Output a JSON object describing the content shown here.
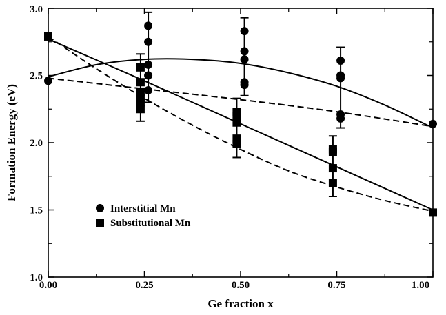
{
  "chart_data": {
    "type": "scatter",
    "title": "",
    "xlabel": "Ge fraction x",
    "ylabel": "Formation Energy (eV)",
    "xlim": [
      0.0,
      1.0
    ],
    "ylim": [
      1.0,
      3.0
    ],
    "grid": false,
    "legend_position": "bottom-left",
    "x_ticks": [
      "0.00",
      "0.25",
      "0.50",
      "0.75",
      "1.00"
    ],
    "y_ticks": [
      "1.0",
      "1.5",
      "2.0",
      "2.5",
      "3.0"
    ],
    "series": [
      {
        "name": "Interstitial Mn",
        "marker": "circle",
        "points": [
          {
            "x": 0.0,
            "y": 2.46
          },
          {
            "x": 0.26,
            "y": 2.87
          },
          {
            "x": 0.26,
            "y": 2.75
          },
          {
            "x": 0.26,
            "y": 2.58
          },
          {
            "x": 0.26,
            "y": 2.5
          },
          {
            "x": 0.26,
            "y": 2.39
          },
          {
            "x": 0.51,
            "y": 2.83
          },
          {
            "x": 0.51,
            "y": 2.68
          },
          {
            "x": 0.51,
            "y": 2.62
          },
          {
            "x": 0.51,
            "y": 2.45
          },
          {
            "x": 0.51,
            "y": 2.43
          },
          {
            "x": 0.76,
            "y": 2.61
          },
          {
            "x": 0.76,
            "y": 2.5
          },
          {
            "x": 0.76,
            "y": 2.48
          },
          {
            "x": 0.76,
            "y": 2.21
          },
          {
            "x": 0.76,
            "y": 2.18
          },
          {
            "x": 1.0,
            "y": 2.14
          }
        ],
        "error_bars": [
          {
            "x": 0.26,
            "ylow": 2.3,
            "yhigh": 2.97
          },
          {
            "x": 0.51,
            "ylow": 2.35,
            "yhigh": 2.93
          },
          {
            "x": 0.76,
            "ylow": 2.11,
            "yhigh": 2.71
          }
        ],
        "fit_solid": [
          {
            "x": 0.0,
            "y": 2.49
          },
          {
            "x": 0.125,
            "y": 2.58
          },
          {
            "x": 0.25,
            "y": 2.62
          },
          {
            "x": 0.375,
            "y": 2.62
          },
          {
            "x": 0.5,
            "y": 2.59
          },
          {
            "x": 0.625,
            "y": 2.52
          },
          {
            "x": 0.75,
            "y": 2.42
          },
          {
            "x": 0.875,
            "y": 2.28
          },
          {
            "x": 1.0,
            "y": 2.11
          }
        ],
        "fit_dashed": [
          {
            "x": 0.0,
            "y": 2.48
          },
          {
            "x": 0.25,
            "y": 2.4
          },
          {
            "x": 0.5,
            "y": 2.32
          },
          {
            "x": 0.75,
            "y": 2.23
          },
          {
            "x": 1.0,
            "y": 2.12
          }
        ]
      },
      {
        "name": "Substitutional Mn",
        "marker": "square",
        "points": [
          {
            "x": 0.0,
            "y": 2.79
          },
          {
            "x": 0.24,
            "y": 2.56
          },
          {
            "x": 0.24,
            "y": 2.45
          },
          {
            "x": 0.24,
            "y": 2.38
          },
          {
            "x": 0.24,
            "y": 2.33
          },
          {
            "x": 0.24,
            "y": 2.3
          },
          {
            "x": 0.24,
            "y": 2.25
          },
          {
            "x": 0.49,
            "y": 2.23
          },
          {
            "x": 0.49,
            "y": 2.2
          },
          {
            "x": 0.49,
            "y": 2.15
          },
          {
            "x": 0.49,
            "y": 2.03
          },
          {
            "x": 0.49,
            "y": 1.99
          },
          {
            "x": 0.74,
            "y": 1.95
          },
          {
            "x": 0.74,
            "y": 1.93
          },
          {
            "x": 0.74,
            "y": 1.81
          },
          {
            "x": 0.74,
            "y": 1.7
          },
          {
            "x": 1.0,
            "y": 1.48
          }
        ],
        "error_bars": [
          {
            "x": 0.24,
            "ylow": 2.16,
            "yhigh": 2.66
          },
          {
            "x": 0.49,
            "ylow": 1.89,
            "yhigh": 2.33
          },
          {
            "x": 0.74,
            "ylow": 1.6,
            "yhigh": 2.05
          }
        ],
        "fit_solid": [
          {
            "x": 0.0,
            "y": 2.77
          },
          {
            "x": 0.25,
            "y": 2.46
          },
          {
            "x": 0.5,
            "y": 2.14
          },
          {
            "x": 0.75,
            "y": 1.82
          },
          {
            "x": 1.0,
            "y": 1.5
          }
        ],
        "fit_dashed": [
          {
            "x": 0.0,
            "y": 2.79
          },
          {
            "x": 0.125,
            "y": 2.55
          },
          {
            "x": 0.25,
            "y": 2.33
          },
          {
            "x": 0.375,
            "y": 2.13
          },
          {
            "x": 0.5,
            "y": 1.95
          },
          {
            "x": 0.625,
            "y": 1.79
          },
          {
            "x": 0.75,
            "y": 1.67
          },
          {
            "x": 0.875,
            "y": 1.57
          },
          {
            "x": 1.0,
            "y": 1.49
          }
        ]
      }
    ]
  },
  "legend": {
    "items": [
      {
        "label": "Interstitial Mn",
        "marker": "circle"
      },
      {
        "label": "Substitutional Mn",
        "marker": "square"
      }
    ]
  }
}
